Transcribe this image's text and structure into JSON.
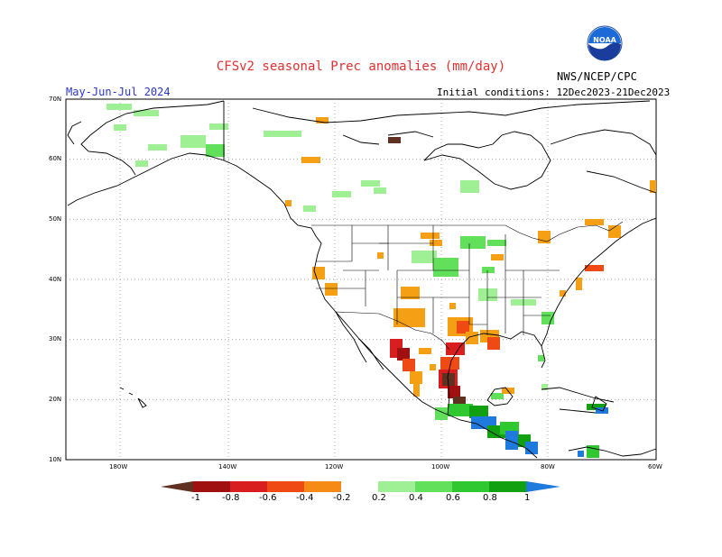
{
  "header": {
    "title": "CFSv2 seasonal Prec anomalies (mm/day)",
    "period": "May-Jun-Jul 2024",
    "initial_conditions": "Initial conditions: 12Dec2023-21Dec2023",
    "agency": "NWS/NCEP/CPC",
    "logo_text": "NOAA"
  },
  "axes": {
    "lat_labels": [
      "70N",
      "60N",
      "50N",
      "40N",
      "30N",
      "20N",
      "10N"
    ],
    "lon_labels": [
      "180W",
      "140W",
      "120W",
      "100W",
      "80W",
      "60W"
    ]
  },
  "legend": {
    "labels": [
      "-1",
      "-0.8",
      "-0.6",
      "-0.4",
      "-0.2",
      "0.2",
      "0.4",
      "0.6",
      "0.8",
      "1"
    ],
    "colors": [
      "#603020",
      "#a01010",
      "#d81e1e",
      "#f04a14",
      "#f58a14",
      "#ffffff",
      "#9ff095",
      "#62e05c",
      "#30c830",
      "#10a010",
      "#1e7adc"
    ]
  },
  "colors": {
    "title": "#e03030",
    "period": "#2b37c8",
    "coast": "#000000",
    "grid": "#999999"
  }
}
